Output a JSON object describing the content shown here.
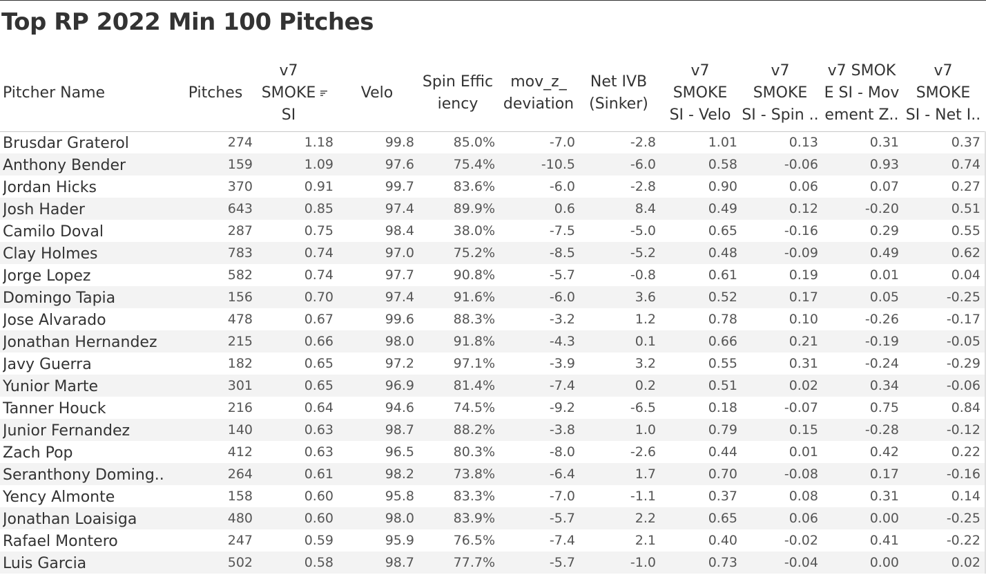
{
  "title": "Top RP 2022 Min 100 Pitches",
  "columns": [
    {
      "key": "pitcher",
      "label": "Pitcher Name"
    },
    {
      "key": "pitches",
      "label": "Pitches"
    },
    {
      "key": "smoke_si",
      "label": "v7\nSMOKE\nSI",
      "sort_icon": "sort-descending-icon"
    },
    {
      "key": "velo",
      "label": "Velo"
    },
    {
      "key": "spin_eff",
      "label": "Spin Effic\niency"
    },
    {
      "key": "mov_z",
      "label": "mov_z_\ndeviation"
    },
    {
      "key": "net_ivb",
      "label": "Net IVB\n(Sinker)"
    },
    {
      "key": "smoke_velo",
      "label": "v7\nSMOKE\nSI - Velo"
    },
    {
      "key": "smoke_spin",
      "label": "v7\nSMOKE\nSI - Spin .."
    },
    {
      "key": "smoke_movz",
      "label": "v7 SMOK\nE SI - Mov\nement Z.."
    },
    {
      "key": "smoke_netivb",
      "label": "v7\nSMOKE\nSI - Net I.."
    }
  ],
  "rows": [
    [
      "Brusdar Graterol",
      "274",
      "1.18",
      "99.8",
      "85.0%",
      "-7.0",
      "-2.8",
      "1.01",
      "0.13",
      "0.31",
      "0.37"
    ],
    [
      "Anthony Bender",
      "159",
      "1.09",
      "97.6",
      "75.4%",
      "-10.5",
      "-6.0",
      "0.58",
      "-0.06",
      "0.93",
      "0.74"
    ],
    [
      "Jordan Hicks",
      "370",
      "0.91",
      "99.7",
      "83.6%",
      "-6.0",
      "-2.8",
      "0.90",
      "0.06",
      "0.07",
      "0.27"
    ],
    [
      "Josh Hader",
      "643",
      "0.85",
      "97.4",
      "89.9%",
      "0.6",
      "8.4",
      "0.49",
      "0.12",
      "-0.20",
      "0.51"
    ],
    [
      "Camilo Doval",
      "287",
      "0.75",
      "98.4",
      "38.0%",
      "-7.5",
      "-5.0",
      "0.65",
      "-0.16",
      "0.29",
      "0.55"
    ],
    [
      "Clay Holmes",
      "783",
      "0.74",
      "97.0",
      "75.2%",
      "-8.5",
      "-5.2",
      "0.48",
      "-0.09",
      "0.49",
      "0.62"
    ],
    [
      "Jorge Lopez",
      "582",
      "0.74",
      "97.7",
      "90.8%",
      "-5.7",
      "-0.8",
      "0.61",
      "0.19",
      "0.01",
      "0.04"
    ],
    [
      "Domingo Tapia",
      "156",
      "0.70",
      "97.4",
      "91.6%",
      "-6.0",
      "3.6",
      "0.52",
      "0.17",
      "0.05",
      "-0.25"
    ],
    [
      "Jose Alvarado",
      "478",
      "0.67",
      "99.6",
      "88.3%",
      "-3.2",
      "1.2",
      "0.78",
      "0.10",
      "-0.26",
      "-0.17"
    ],
    [
      "Jonathan Hernandez",
      "215",
      "0.66",
      "98.0",
      "91.8%",
      "-4.3",
      "0.1",
      "0.66",
      "0.21",
      "-0.19",
      "-0.05"
    ],
    [
      "Javy Guerra",
      "182",
      "0.65",
      "97.2",
      "97.1%",
      "-3.9",
      "3.2",
      "0.55",
      "0.31",
      "-0.24",
      "-0.29"
    ],
    [
      "Yunior Marte",
      "301",
      "0.65",
      "96.9",
      "81.4%",
      "-7.4",
      "0.2",
      "0.51",
      "0.02",
      "0.34",
      "-0.06"
    ],
    [
      "Tanner Houck",
      "216",
      "0.64",
      "94.6",
      "74.5%",
      "-9.2",
      "-6.5",
      "0.18",
      "-0.07",
      "0.75",
      "0.84"
    ],
    [
      "Junior Fernandez",
      "140",
      "0.63",
      "98.7",
      "88.2%",
      "-3.8",
      "1.0",
      "0.79",
      "0.15",
      "-0.28",
      "-0.12"
    ],
    [
      "Zach Pop",
      "412",
      "0.63",
      "96.5",
      "80.3%",
      "-8.0",
      "-2.6",
      "0.44",
      "0.01",
      "0.42",
      "0.22"
    ],
    [
      "Seranthony Doming..",
      "264",
      "0.61",
      "98.2",
      "73.8%",
      "-6.4",
      "1.7",
      "0.70",
      "-0.08",
      "0.17",
      "-0.16"
    ],
    [
      "Yency Almonte",
      "158",
      "0.60",
      "95.8",
      "83.3%",
      "-7.0",
      "-1.1",
      "0.37",
      "0.08",
      "0.31",
      "0.14"
    ],
    [
      "Jonathan Loaisiga",
      "480",
      "0.60",
      "98.0",
      "83.9%",
      "-5.7",
      "2.2",
      "0.65",
      "0.06",
      "0.00",
      "-0.25"
    ],
    [
      "Rafael Montero",
      "247",
      "0.59",
      "95.9",
      "76.5%",
      "-7.4",
      "2.1",
      "0.40",
      "-0.02",
      "0.41",
      "-0.22"
    ],
    [
      "Luis Garcia",
      "502",
      "0.58",
      "98.7",
      "77.7%",
      "-5.7",
      "-1.0",
      "0.73",
      "-0.04",
      "0.00",
      "0.02"
    ]
  ],
  "colors": {
    "text": "#333333",
    "numbers": "#555555",
    "band": "#f3f3f3",
    "rule": "#c8c8c8"
  }
}
